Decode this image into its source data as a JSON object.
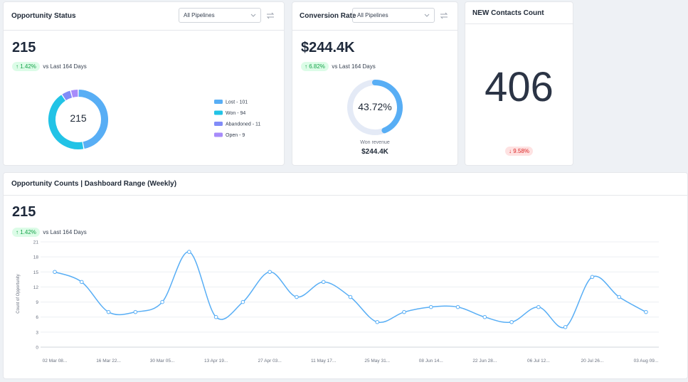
{
  "opportunity_status": {
    "title": "Opportunity Status",
    "pipeline": "All Pipelines",
    "total": "215",
    "change": "1.42%",
    "comparison": "vs Last 164 Days",
    "center_label": "215",
    "chart_data": {
      "type": "donut",
      "series": [
        {
          "label": "Lost - 101",
          "value": 101,
          "color": "#58aef5"
        },
        {
          "label": "Won - 94",
          "value": 94,
          "color": "#22c3e6"
        },
        {
          "label": "Abandoned - 11",
          "value": 11,
          "color": "#818cf8"
        },
        {
          "label": "Open - 9",
          "value": 9,
          "color": "#a78bfa"
        }
      ]
    }
  },
  "conversion_rate": {
    "title": "Conversion Rate",
    "pipeline": "All Pipelines",
    "total": "$244.4K",
    "change": "6.82%",
    "comparison": "vs Last 164 Days",
    "chart_data": {
      "type": "gauge",
      "value": 43.72,
      "value_label": "43.72%",
      "caption": "Won revenue",
      "caption_value": "$244.4K",
      "color": "#58aef5",
      "track_color": "#e4eaf6"
    }
  },
  "new_contacts": {
    "title": "NEW Contacts Count",
    "total": "406",
    "change": "9.58%"
  },
  "opportunity_counts": {
    "title": "Opportunity Counts | Dashboard Range (Weekly)",
    "total": "215",
    "change": "1.42%",
    "comparison": "vs Last 164 Days",
    "chart_data": {
      "type": "line",
      "y_label": "Count of Opportunity",
      "categories": [
        "02 Mar  08...",
        null,
        "16 Mar  22...",
        null,
        "30 Mar  05...",
        null,
        "13 Apr  19...",
        null,
        "27 Apr  03...",
        null,
        "11 May  17...",
        null,
        "25 May  31...",
        null,
        "08 Jun  14...",
        null,
        "22 Jun  28...",
        null,
        "06 Jul  12...",
        null,
        "20 Jul  26...",
        null,
        "03 Aug  09..."
      ],
      "values": [
        15,
        13,
        7,
        7,
        9,
        19,
        6,
        9,
        15,
        10,
        13,
        10,
        5,
        7,
        8,
        8,
        6,
        5,
        8,
        4,
        14,
        10,
        7
      ],
      "color": "#58aef5",
      "ylim": [
        0,
        21
      ],
      "yticks": [
        0,
        3,
        6,
        9,
        12,
        15,
        18,
        21
      ],
      "grid": true
    }
  }
}
